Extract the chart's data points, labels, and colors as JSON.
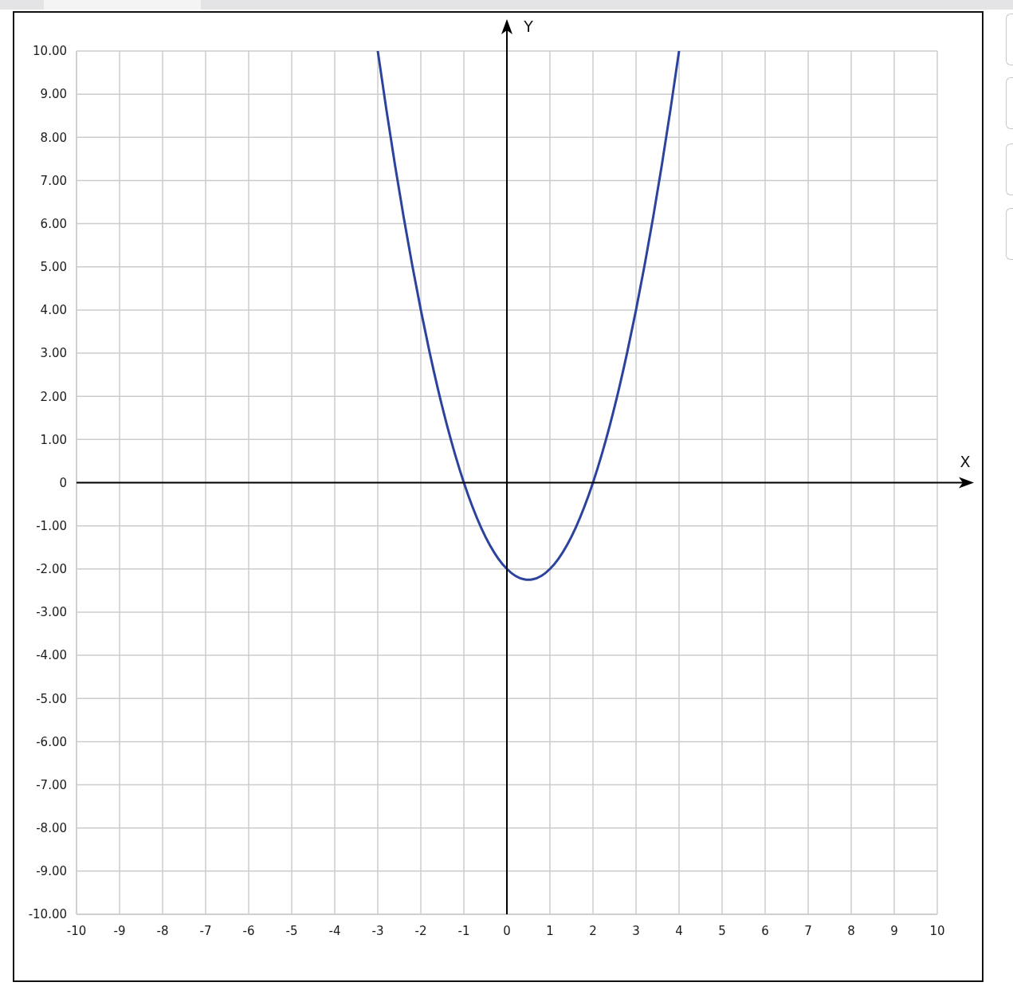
{
  "chart_data": {
    "type": "line",
    "xlabel": "X",
    "ylabel": "Y",
    "x": [
      -3,
      -2.8,
      -2.6,
      -2.4,
      -2.2,
      -2,
      -1.8,
      -1.6,
      -1.4,
      -1.2,
      -1,
      -0.8,
      -0.6,
      -0.4,
      -0.2,
      0,
      0.2,
      0.4,
      0.5,
      0.6,
      0.8,
      1,
      1.2,
      1.4,
      1.6,
      1.8,
      2,
      2.2,
      2.4,
      2.6,
      2.8,
      3,
      3.2,
      3.4,
      3.6,
      3.8,
      4
    ],
    "series": [
      {
        "color": "#2c439e",
        "values": [
          10,
          8.64,
          7.36,
          6.16,
          5.04,
          4,
          3.04,
          2.16,
          1.36,
          0.64,
          0,
          -0.56,
          -1.04,
          -1.44,
          -1.76,
          -2,
          -2.16,
          -2.24,
          -2.25,
          -2.24,
          -2.16,
          -2,
          -1.76,
          -1.44,
          -1.04,
          -0.56,
          0,
          0.64,
          1.36,
          2.16,
          3.04,
          4,
          5.04,
          6.16,
          7.36,
          8.64,
          10
        ]
      }
    ],
    "xlim": [
      -10,
      10
    ],
    "xticks": [
      -10,
      -9,
      -8,
      -7,
      -6,
      -5,
      -4,
      -3,
      -2,
      -1,
      0,
      1,
      2,
      3,
      4,
      5,
      6,
      7,
      8,
      9,
      10
    ],
    "ylim": [
      -10,
      10
    ],
    "yticks": [
      {
        "value": 10,
        "label": "10.00"
      },
      {
        "value": 9,
        "label": "9.00"
      },
      {
        "value": 8,
        "label": "8.00"
      },
      {
        "value": 7,
        "label": "7.00"
      },
      {
        "value": 6,
        "label": "6.00"
      },
      {
        "value": 5,
        "label": "5.00"
      },
      {
        "value": 4,
        "label": "4.00"
      },
      {
        "value": 3,
        "label": "3.00"
      },
      {
        "value": 2,
        "label": "2.00"
      },
      {
        "value": 1,
        "label": "1.00"
      },
      0,
      {
        "value": -1,
        "label": "-1.00"
      },
      {
        "value": -2,
        "label": "-2.00"
      },
      {
        "value": -3,
        "label": "-3.00"
      },
      {
        "value": -4,
        "label": "-4.00"
      },
      {
        "value": -5,
        "label": "-5.00"
      },
      {
        "value": -6,
        "label": "-6.00"
      },
      {
        "value": -7,
        "label": "-7.00"
      },
      {
        "value": -8,
        "label": "-8.00"
      },
      {
        "value": -9,
        "label": "-9.00"
      },
      {
        "value": -10,
        "label": "-10.00"
      }
    ],
    "grid": true,
    "marker": "none",
    "line_style": "solid"
  }
}
